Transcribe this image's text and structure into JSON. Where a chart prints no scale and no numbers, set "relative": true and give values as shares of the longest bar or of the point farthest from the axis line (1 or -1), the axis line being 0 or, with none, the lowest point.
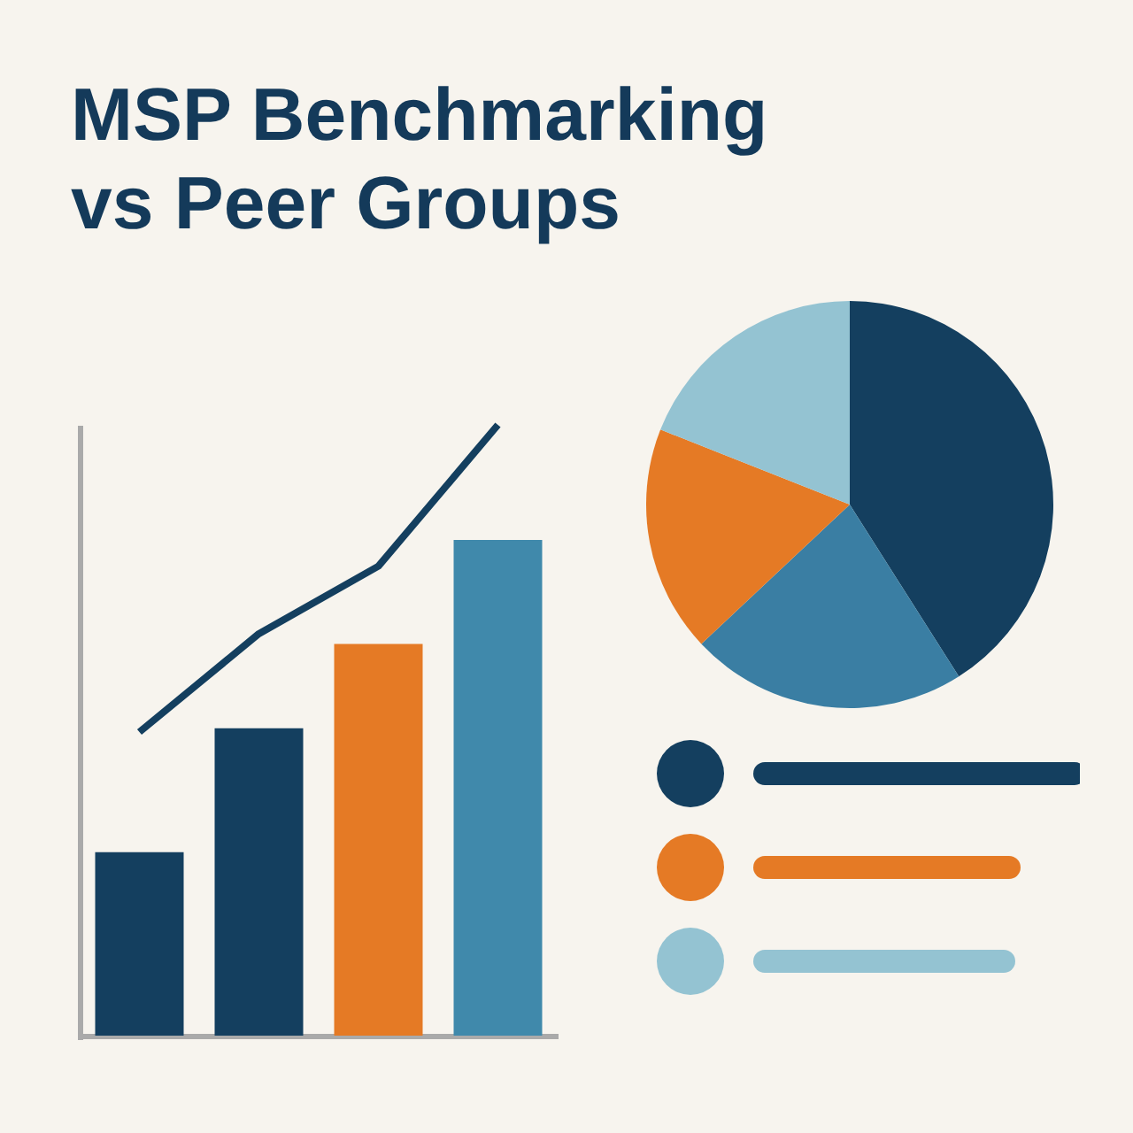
{
  "chart_data": [
    {
      "type": "bar",
      "title": "MSP Benchmarking vs Peer Groups",
      "relative": true,
      "categories": [
        null,
        null,
        null,
        null
      ],
      "colors": [
        "#143f5f",
        "#143f5f",
        "#e57a25",
        "#4089ab"
      ],
      "values": [
        0.37,
        0.62,
        0.79,
        1.0
      ]
    },
    {
      "type": "line",
      "relative": true,
      "categories": [
        null,
        null,
        null,
        null
      ],
      "color": "#143f5f",
      "values": [
        0.5,
        0.66,
        0.77,
        1.0
      ]
    },
    {
      "type": "pie",
      "categories": [
        null,
        null,
        null,
        null
      ],
      "values": [
        41,
        22,
        18,
        19
      ],
      "colors": [
        "#143f5f",
        "#3a7ea3",
        "#e57a25",
        "#94c3d2"
      ]
    }
  ]
}
